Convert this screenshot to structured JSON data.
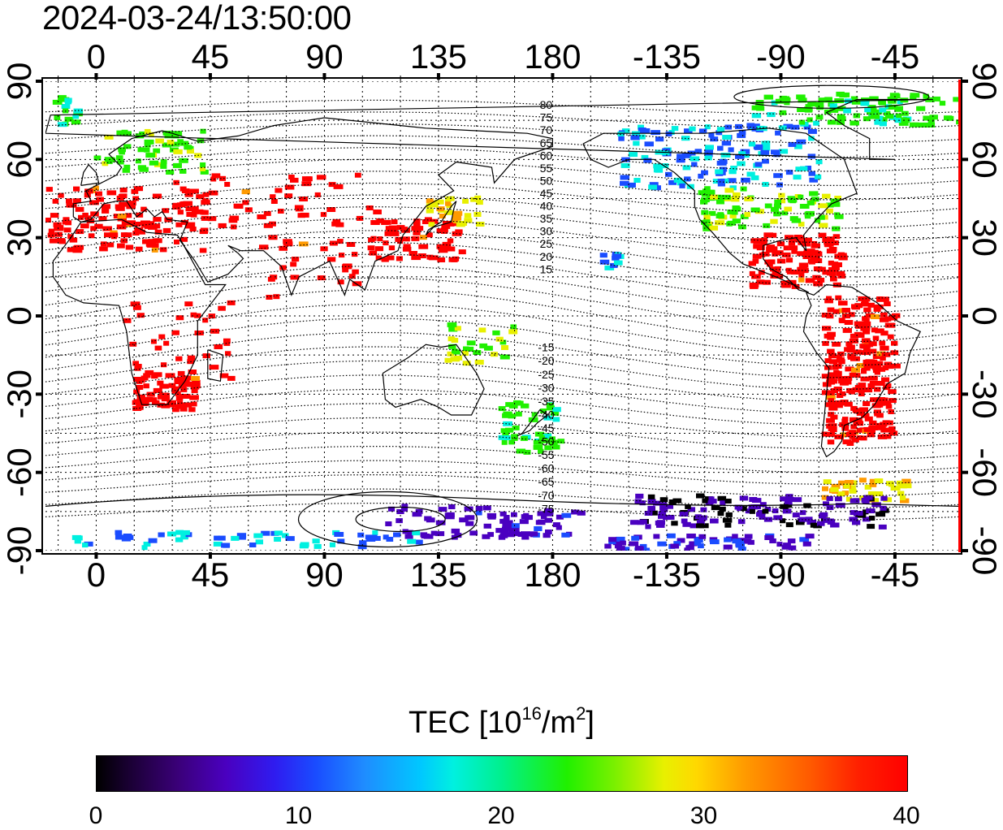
{
  "title": {
    "timestamp": "2024-03-24/13:50:00"
  },
  "map": {
    "x_tick_labels": [
      "0",
      "45",
      "90",
      "135",
      "180",
      "-135",
      "-90",
      "-45"
    ],
    "y_tick_labels": [
      "90",
      "60",
      "30",
      "0",
      "-30",
      "-60",
      "-90"
    ],
    "contour_labels": [
      "80",
      "75",
      "70",
      "65",
      "60",
      "55",
      "50",
      "45",
      "40",
      "35",
      "30",
      "25",
      "20",
      "15",
      "-15",
      "-20",
      "-25",
      "-30",
      "-35",
      "-40",
      "-45",
      "-50",
      "-55",
      "-60",
      "-65",
      "-70",
      "-75"
    ],
    "lon_range": [
      -20,
      340
    ],
    "lat_range": [
      -90,
      90
    ],
    "grid": true
  },
  "colorbar": {
    "label_text": "TEC  [10",
    "label_exp1": "16",
    "label_mid": "/m",
    "label_exp2": "2",
    "label_end": "]",
    "tick_labels": [
      "0",
      "10",
      "20",
      "30",
      "40"
    ],
    "range": [
      0,
      40
    ],
    "colors": [
      "#000000",
      "#4a00c0",
      "#1a4cff",
      "#00f0e0",
      "#20f000",
      "#e8f000",
      "#ff9a00",
      "#ff0000"
    ]
  },
  "tec_regions": [
    {
      "name": "europe-north-africa",
      "lon": 20,
      "lat": 40,
      "level": 40
    },
    {
      "name": "scandinavia",
      "lon": 20,
      "lat": 65,
      "level": 24
    },
    {
      "name": "greenland-arctic",
      "lon": -40,
      "lat": 80,
      "level": 24
    },
    {
      "name": "south-africa",
      "lon": 25,
      "lat": -28,
      "level": 40
    },
    {
      "name": "east-asia",
      "lon": 130,
      "lat": 33,
      "level": 40
    },
    {
      "name": "north-america-north",
      "lon": -110,
      "lat": 60,
      "level": 14
    },
    {
      "name": "north-america-south",
      "lon": -90,
      "lat": 35,
      "level": 40
    },
    {
      "name": "south-america",
      "lon": -60,
      "lat": -25,
      "level": 40
    },
    {
      "name": "new-zealand",
      "lon": 170,
      "lat": -42,
      "level": 22
    },
    {
      "name": "antarctica",
      "lon": -120,
      "lat": -75,
      "level": 6
    }
  ]
}
